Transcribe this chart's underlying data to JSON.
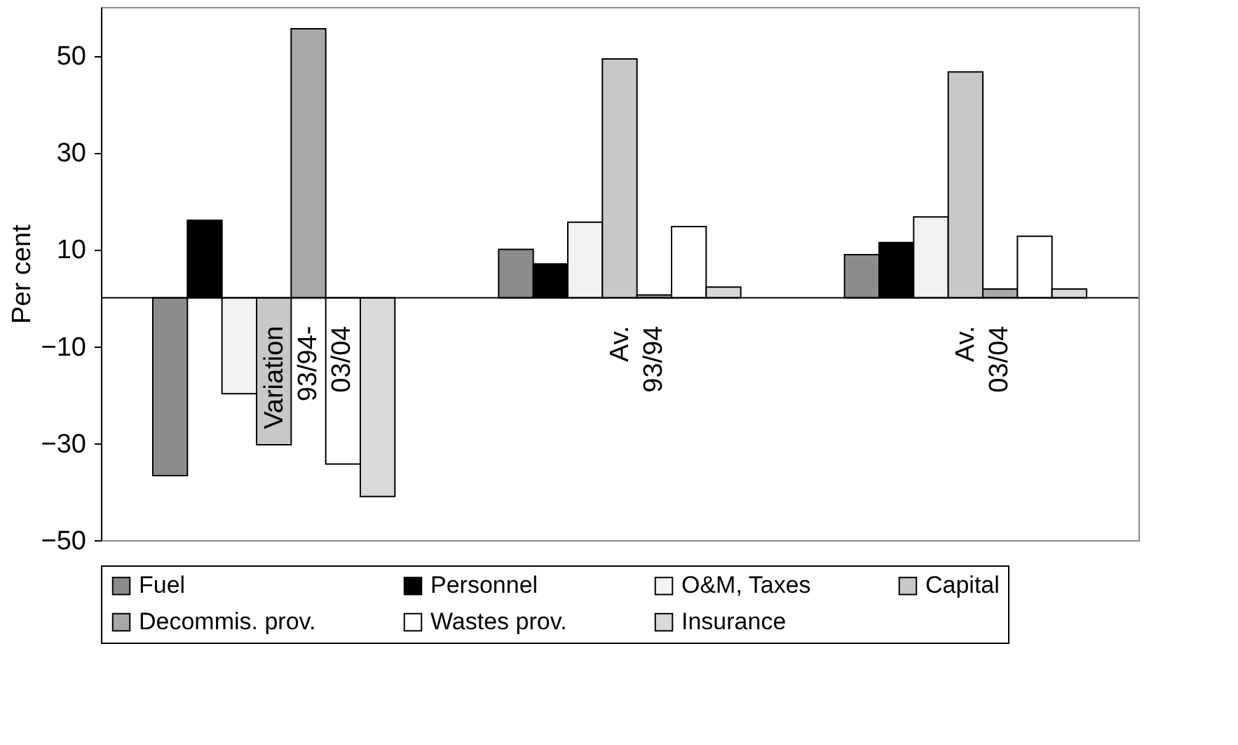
{
  "chart_data": {
    "type": "bar",
    "ylabel": "Per cent",
    "categories": [
      "Variation 93/94-03/04",
      "Av. 93/94",
      "Av. 03/04"
    ],
    "series": [
      {
        "name": "Fuel",
        "color": "#8c8c8c",
        "values": [
          -36.7,
          10.0,
          8.9
        ]
      },
      {
        "name": "Personnel",
        "color": "#000000",
        "values": [
          16.0,
          7.0,
          11.4
        ]
      },
      {
        "name": "O&M, Taxes",
        "color": "#f2f2f2",
        "values": [
          -19.8,
          15.6,
          16.7
        ]
      },
      {
        "name": "Capital",
        "color": "#c8c8c8",
        "values": [
          -30.3,
          49.3,
          46.6
        ]
      },
      {
        "name": "Decommis. prov.",
        "color": "#a8a8a8",
        "values": [
          55.5,
          0.6,
          1.8
        ]
      },
      {
        "name": "Wastes prov.",
        "color": "#ffffff",
        "values": [
          -34.3,
          14.7,
          12.7
        ]
      },
      {
        "name": "Insurance",
        "color": "#d9d9d9",
        "values": [
          -41.0,
          2.2,
          1.8
        ]
      }
    ],
    "ylim": [
      -50,
      60
    ],
    "yticks": [
      -50,
      -30,
      -10,
      10,
      30,
      50
    ],
    "grid": false,
    "legend": "bottom"
  }
}
